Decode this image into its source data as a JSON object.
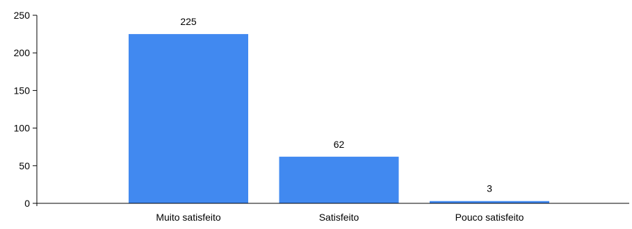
{
  "chart_data": {
    "type": "bar",
    "title": "",
    "xlabel": "",
    "ylabel": "",
    "categories": [
      "Muito satisfeito",
      "Satisfeito",
      "Pouco satisfeito"
    ],
    "values": [
      225,
      62,
      3
    ],
    "data_labels": [
      "225",
      "62",
      "3"
    ],
    "ylim": [
      0,
      250
    ],
    "yticks": [
      0,
      50,
      100,
      150,
      200,
      250
    ],
    "ytick_labels": [
      "0",
      "50",
      "100",
      "150",
      "200",
      "250"
    ],
    "grid": false,
    "legend": "none",
    "bar_color": "#4189f0",
    "axis_color": "#000000"
  }
}
